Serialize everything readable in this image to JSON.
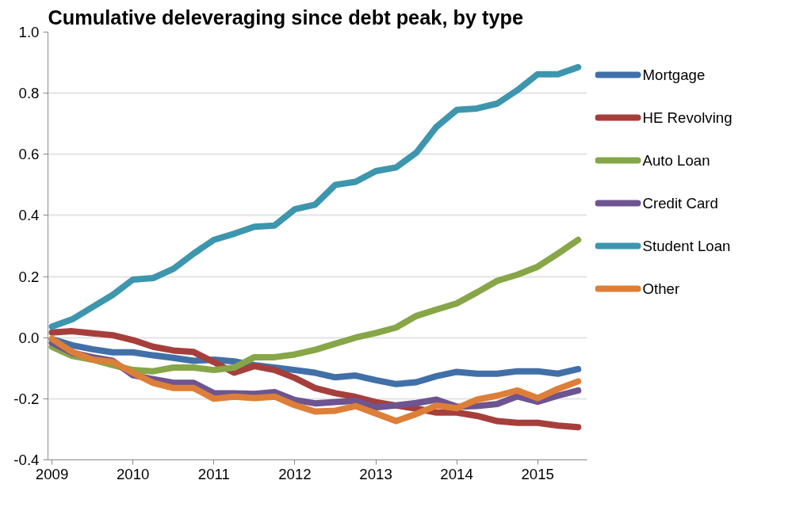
{
  "chart_data": {
    "type": "line",
    "title": "Cumulative deleveraging since debt peak, by type",
    "x": [
      2009.0,
      2009.25,
      2009.5,
      2009.75,
      2010.0,
      2010.25,
      2010.5,
      2010.75,
      2011.0,
      2011.25,
      2011.5,
      2011.75,
      2012.0,
      2012.25,
      2012.5,
      2012.75,
      2013.0,
      2013.25,
      2013.5,
      2013.75,
      2014.0,
      2014.25,
      2014.5,
      2014.75,
      2015.0,
      2015.25,
      2015.5
    ],
    "series": [
      {
        "name": "Mortgage",
        "color": "#4170a8",
        "values": [
          -0.005,
          -0.025,
          -0.038,
          -0.048,
          -0.048,
          -0.058,
          -0.066,
          -0.076,
          -0.072,
          -0.078,
          -0.09,
          -0.098,
          -0.106,
          -0.115,
          -0.13,
          -0.124,
          -0.139,
          -0.152,
          -0.146,
          -0.126,
          -0.112,
          -0.118,
          -0.118,
          -0.11,
          -0.11,
          -0.118,
          -0.103
        ]
      },
      {
        "name": "HE Revolving",
        "color": "#a63f3c",
        "values": [
          0.017,
          0.021,
          0.014,
          0.008,
          -0.008,
          -0.03,
          -0.042,
          -0.047,
          -0.08,
          -0.115,
          -0.093,
          -0.106,
          -0.132,
          -0.165,
          -0.182,
          -0.194,
          -0.211,
          -0.222,
          -0.232,
          -0.245,
          -0.245,
          -0.256,
          -0.273,
          -0.279,
          -0.279,
          -0.288,
          -0.293
        ]
      },
      {
        "name": "Auto Loan",
        "color": "#86a648",
        "values": [
          -0.03,
          -0.06,
          -0.072,
          -0.09,
          -0.106,
          -0.11,
          -0.098,
          -0.098,
          -0.106,
          -0.098,
          -0.064,
          -0.064,
          -0.055,
          -0.04,
          -0.02,
          0.0,
          0.015,
          0.033,
          0.071,
          0.092,
          0.112,
          0.148,
          0.186,
          0.206,
          0.232,
          0.275,
          0.32
        ]
      },
      {
        "name": "Credit Card",
        "color": "#6e5490",
        "values": [
          -0.017,
          -0.05,
          -0.064,
          -0.076,
          -0.123,
          -0.136,
          -0.148,
          -0.148,
          -0.182,
          -0.182,
          -0.184,
          -0.178,
          -0.204,
          -0.215,
          -0.211,
          -0.207,
          -0.228,
          -0.222,
          -0.214,
          -0.203,
          -0.226,
          -0.224,
          -0.217,
          -0.192,
          -0.21,
          -0.19,
          -0.173
        ]
      },
      {
        "name": "Student Loan",
        "color": "#3d96ae",
        "values": [
          0.036,
          0.06,
          0.1,
          0.14,
          0.19,
          0.195,
          0.225,
          0.275,
          0.32,
          0.34,
          0.363,
          0.367,
          0.42,
          0.435,
          0.5,
          0.51,
          0.545,
          0.557,
          0.605,
          0.69,
          0.745,
          0.75,
          0.766,
          0.81,
          0.862,
          0.862,
          0.885
        ]
      },
      {
        "name": "Other",
        "color": "#dd7f38",
        "values": [
          -0.004,
          -0.047,
          -0.072,
          -0.08,
          -0.115,
          -0.148,
          -0.165,
          -0.165,
          -0.2,
          -0.193,
          -0.198,
          -0.193,
          -0.221,
          -0.242,
          -0.239,
          -0.224,
          -0.248,
          -0.273,
          -0.25,
          -0.222,
          -0.231,
          -0.203,
          -0.19,
          -0.173,
          -0.198,
          -0.168,
          -0.143
        ]
      }
    ],
    "xlim": [
      2008.95,
      2015.61
    ],
    "xticks": [
      2009,
      2010,
      2011,
      2012,
      2013,
      2014,
      2015
    ],
    "ylim": [
      -0.4,
      1.0
    ],
    "yticks": [
      {
        "value": -0.4,
        "label": "-0.4"
      },
      {
        "value": -0.2,
        "label": "-0.2"
      },
      {
        "value": 0,
        "label": "0.0"
      },
      {
        "value": 0.2,
        "label": "0.2"
      },
      {
        "value": 0.4,
        "label": "0.4"
      },
      {
        "value": 0.6,
        "label": "0.6"
      },
      {
        "value": 0.8,
        "label": "0.8"
      },
      {
        "value": 1.0,
        "label": "1.0"
      }
    ],
    "grid": "y",
    "legend": "right",
    "line_style": "solid"
  }
}
